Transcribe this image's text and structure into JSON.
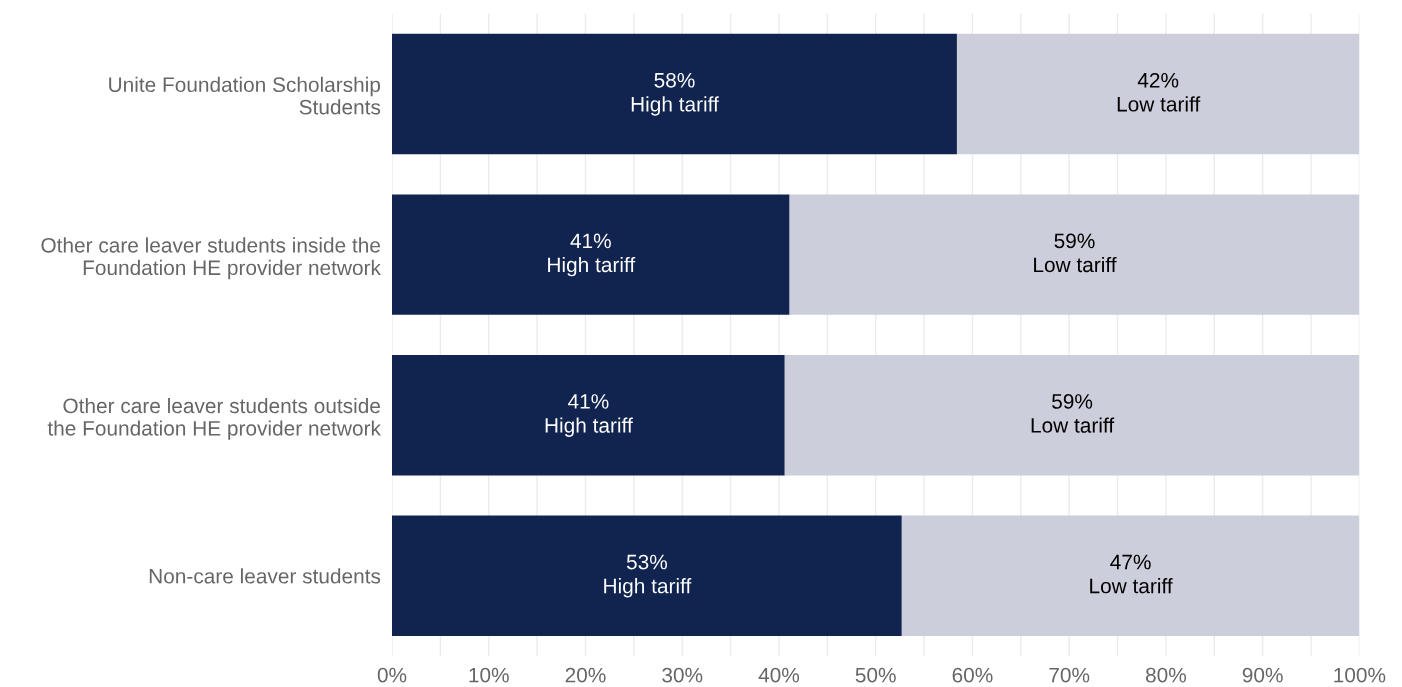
{
  "chart_data": {
    "type": "bar",
    "orientation": "horizontal",
    "stacked": true,
    "categories": [
      "Unite Foundation Scholarship\nStudents",
      "Other care leaver students inside the\nFoundation HE provider network",
      "Other care leaver students outside\nthe Foundation HE provider network",
      "Non-care leaver students"
    ],
    "series": [
      {
        "name": "High tariff",
        "color": "#10244f",
        "values": [
          58.4,
          41.1,
          40.6,
          52.7
        ],
        "value_labels": [
          "58%",
          "41%",
          "41%",
          "53%"
        ]
      },
      {
        "name": "Low tariff",
        "color": "#cccedb",
        "values": [
          41.6,
          58.9,
          59.4,
          47.3
        ],
        "value_labels": [
          "42%",
          "59%",
          "59%",
          "47%"
        ]
      }
    ],
    "xlim": [
      0,
      100
    ],
    "xticks": [
      {
        "value": 0,
        "label": "0%"
      },
      {
        "value": 5,
        "label": null
      },
      {
        "value": 10,
        "label": "10%"
      },
      {
        "value": 15,
        "label": null
      },
      {
        "value": 20,
        "label": "20%"
      },
      {
        "value": 25,
        "label": null
      },
      {
        "value": 30,
        "label": "30%"
      },
      {
        "value": 35,
        "label": null
      },
      {
        "value": 40,
        "label": "40%"
      },
      {
        "value": 45,
        "label": null
      },
      {
        "value": 50,
        "label": "50%"
      },
      {
        "value": 55,
        "label": null
      },
      {
        "value": 60,
        "label": "60%"
      },
      {
        "value": 65,
        "label": null
      },
      {
        "value": 70,
        "label": "70%"
      },
      {
        "value": 75,
        "label": null
      },
      {
        "value": 80,
        "label": "80%"
      },
      {
        "value": 85,
        "label": null
      },
      {
        "value": 90,
        "label": "90%"
      },
      {
        "value": 95,
        "label": null
      },
      {
        "value": 100,
        "label": "100%"
      }
    ],
    "grid": "x",
    "legend": false
  }
}
